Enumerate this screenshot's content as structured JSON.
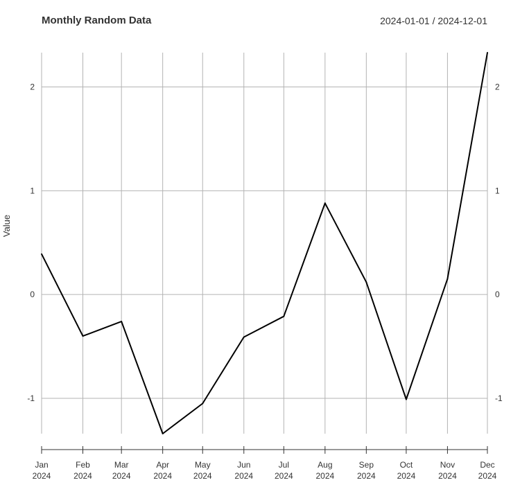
{
  "header": {
    "title": "Monthly Random Data",
    "date_range": "2024-01-01 / 2024-12-01"
  },
  "colors": {
    "line": "#000000",
    "grid": "#b3b3b3",
    "axis": "#333333",
    "text": "#333333"
  },
  "chart_data": {
    "type": "line",
    "title": "Monthly Random Data",
    "xlabel": "",
    "ylabel": "Value",
    "grid": true,
    "categories": [
      "Jan 2024",
      "Feb 2024",
      "Mar 2024",
      "Apr 2024",
      "May 2024",
      "Jun 2024",
      "Jul 2024",
      "Aug 2024",
      "Sep 2024",
      "Oct 2024",
      "Nov 2024",
      "Dec 2024"
    ],
    "x_tick_labels": [
      {
        "month": "Jan",
        "year": "2024"
      },
      {
        "month": "Feb",
        "year": "2024"
      },
      {
        "month": "Mar",
        "year": "2024"
      },
      {
        "month": "Apr",
        "year": "2024"
      },
      {
        "month": "May",
        "year": "2024"
      },
      {
        "month": "Jun",
        "year": "2024"
      },
      {
        "month": "Jul",
        "year": "2024"
      },
      {
        "month": "Aug",
        "year": "2024"
      },
      {
        "month": "Sep",
        "year": "2024"
      },
      {
        "month": "Oct",
        "year": "2024"
      },
      {
        "month": "Nov",
        "year": "2024"
      },
      {
        "month": "Dec",
        "year": "2024"
      }
    ],
    "x_days": [
      0,
      31,
      60,
      91,
      121,
      152,
      182,
      213,
      244,
      274,
      305,
      335
    ],
    "series": [
      {
        "name": "Value",
        "values": [
          0.39,
          -0.4,
          -0.26,
          -1.34,
          -1.05,
          -0.41,
          -0.21,
          0.88,
          0.12,
          -1.01,
          0.15,
          2.33
        ]
      }
    ],
    "ylim": [
      -1.34,
      2.33
    ],
    "y_ticks": [
      -1,
      0,
      1,
      2
    ],
    "y_tick_labels": [
      "-1",
      "0",
      "1",
      "2"
    ]
  }
}
